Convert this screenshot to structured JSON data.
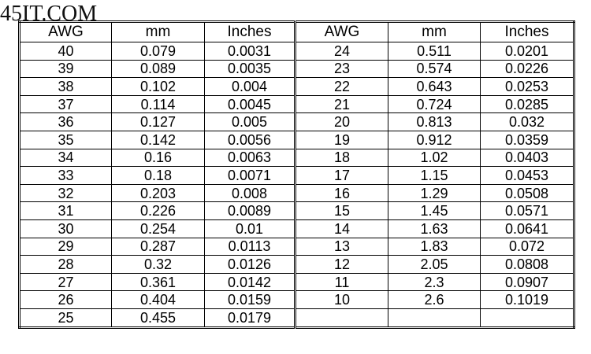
{
  "watermark": "45IT.COM",
  "table": {
    "header": [
      "AWG",
      "mm",
      "Inches",
      "AWG",
      "mm",
      "Inches"
    ],
    "rows": [
      [
        "40",
        "0.079",
        "0.0031",
        "24",
        "0.511",
        "0.0201"
      ],
      [
        "39",
        "0.089",
        "0.0035",
        "23",
        "0.574",
        "0.0226"
      ],
      [
        "38",
        "0.102",
        "0.004",
        "22",
        "0.643",
        "0.0253"
      ],
      [
        "37",
        "0.114",
        "0.0045",
        "21",
        "0.724",
        "0.0285"
      ],
      [
        "36",
        "0.127",
        "0.005",
        "20",
        "0.813",
        "0.032"
      ],
      [
        "35",
        "0.142",
        "0.0056",
        "19",
        "0.912",
        "0.0359"
      ],
      [
        "34",
        "0.16",
        "0.0063",
        "18",
        "1.02",
        "0.0403"
      ],
      [
        "33",
        "0.18",
        "0.0071",
        "17",
        "1.15",
        "0.0453"
      ],
      [
        "32",
        "0.203",
        "0.008",
        "16",
        "1.29",
        "0.0508"
      ],
      [
        "31",
        "0.226",
        "0.0089",
        "15",
        "1.45",
        "0.0571"
      ],
      [
        "30",
        "0.254",
        "0.01",
        "14",
        "1.63",
        "0.0641"
      ],
      [
        "29",
        "0.287",
        "0.0113",
        "13",
        "1.83",
        "0.072"
      ],
      [
        "28",
        "0.32",
        "0.0126",
        "12",
        "2.05",
        "0.0808"
      ],
      [
        "27",
        "0.361",
        "0.0142",
        "11",
        "2.3",
        "0.0907"
      ],
      [
        "26",
        "0.404",
        "0.0159",
        "10",
        "2.6",
        "0.1019"
      ],
      [
        "25",
        "0.455",
        "0.0179"
      ]
    ]
  }
}
